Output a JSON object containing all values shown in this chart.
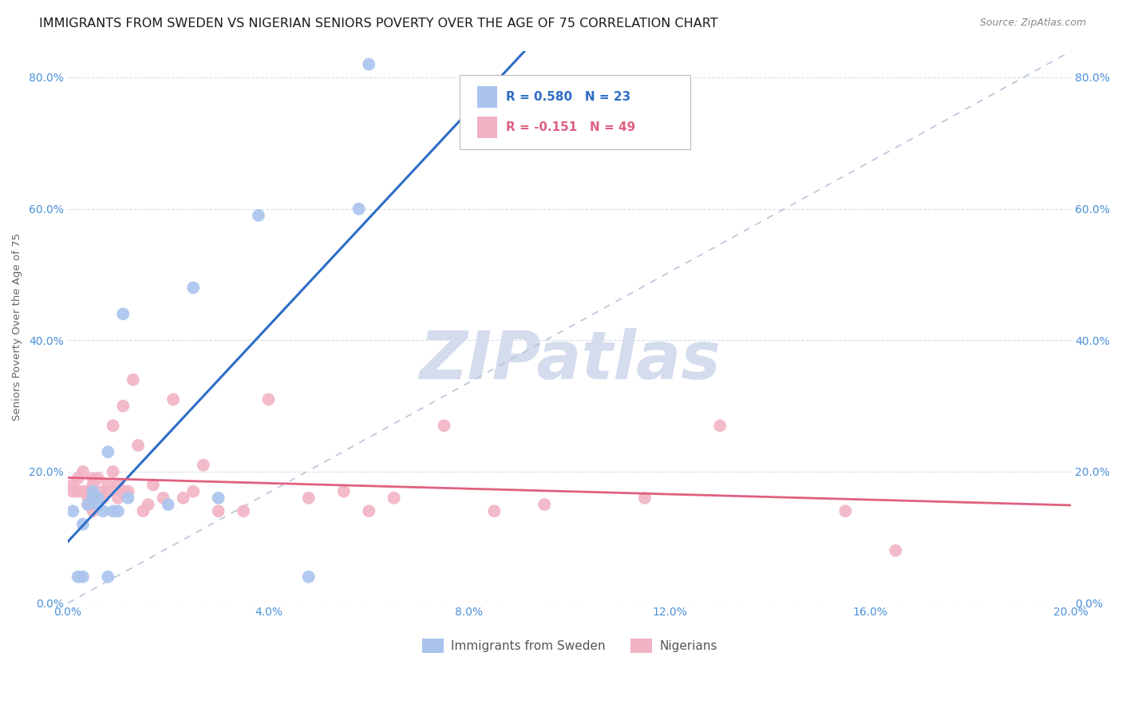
{
  "title": "IMMIGRANTS FROM SWEDEN VS NIGERIAN SENIORS POVERTY OVER THE AGE OF 75 CORRELATION CHART",
  "source": "Source: ZipAtlas.com",
  "ylabel": "Seniors Poverty Over the Age of 75",
  "xlim": [
    0.0,
    0.2
  ],
  "ylim": [
    0.0,
    0.84
  ],
  "xticks": [
    0.0,
    0.04,
    0.08,
    0.12,
    0.16,
    0.2
  ],
  "yticks": [
    0.0,
    0.2,
    0.4,
    0.6,
    0.8
  ],
  "sweden_R": 0.58,
  "sweden_N": 23,
  "nigeria_R": -0.151,
  "nigeria_N": 49,
  "sweden_color": "#aac4ee",
  "nigeria_color": "#f2b3c4",
  "sweden_line_color": "#2e6ec7",
  "nigeria_line_color": "#e06080",
  "diagonal_color": "#b8c4d8",
  "watermark_text": "ZIPatlas",
  "watermark_color": "#d4dced",
  "background_color": "#ffffff",
  "title_fontsize": 11.5,
  "source_fontsize": 9,
  "label_fontsize": 9.5,
  "tick_fontsize": 10,
  "legend_fontsize": 11,
  "sweden_scatter_x": [
    0.001,
    0.002,
    0.003,
    0.003,
    0.004,
    0.005,
    0.005,
    0.006,
    0.006,
    0.007,
    0.008,
    0.008,
    0.009,
    0.01,
    0.011,
    0.012,
    0.02,
    0.025,
    0.03,
    0.038,
    0.048,
    0.058,
    0.06
  ],
  "sweden_scatter_y": [
    0.14,
    0.04,
    0.12,
    0.04,
    0.15,
    0.16,
    0.17,
    0.15,
    0.16,
    0.14,
    0.23,
    0.04,
    0.14,
    0.14,
    0.44,
    0.16,
    0.15,
    0.48,
    0.16,
    0.59,
    0.04,
    0.6,
    0.82
  ],
  "nigeria_scatter_x": [
    0.001,
    0.001,
    0.002,
    0.002,
    0.003,
    0.003,
    0.004,
    0.004,
    0.004,
    0.005,
    0.005,
    0.005,
    0.006,
    0.006,
    0.007,
    0.007,
    0.008,
    0.008,
    0.009,
    0.009,
    0.01,
    0.01,
    0.011,
    0.011,
    0.012,
    0.013,
    0.014,
    0.015,
    0.016,
    0.017,
    0.019,
    0.021,
    0.023,
    0.025,
    0.027,
    0.03,
    0.035,
    0.04,
    0.048,
    0.055,
    0.06,
    0.065,
    0.075,
    0.085,
    0.095,
    0.115,
    0.13,
    0.155,
    0.165
  ],
  "nigeria_scatter_y": [
    0.18,
    0.17,
    0.17,
    0.19,
    0.17,
    0.2,
    0.16,
    0.17,
    0.15,
    0.18,
    0.19,
    0.14,
    0.16,
    0.19,
    0.16,
    0.17,
    0.17,
    0.18,
    0.27,
    0.2,
    0.16,
    0.18,
    0.17,
    0.3,
    0.17,
    0.34,
    0.24,
    0.14,
    0.15,
    0.18,
    0.16,
    0.31,
    0.16,
    0.17,
    0.21,
    0.14,
    0.14,
    0.31,
    0.16,
    0.17,
    0.14,
    0.16,
    0.27,
    0.14,
    0.15,
    0.16,
    0.27,
    0.14,
    0.08
  ],
  "grid_color": "#d8dde8",
  "tick_color": "#4a90d9"
}
